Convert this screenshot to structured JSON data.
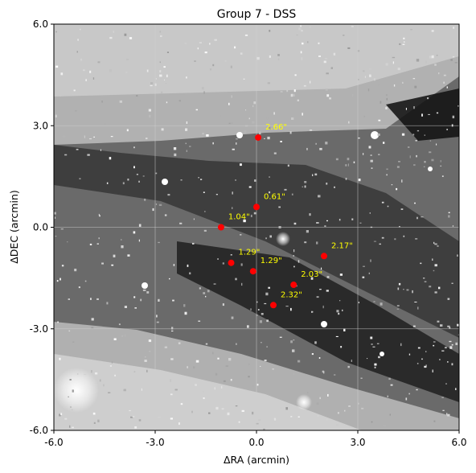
{
  "chart_data": {
    "type": "scatter",
    "title": "Group 7 - DSS",
    "xlabel": "ΔRA (arcmin)",
    "ylabel": "ΔDEC (arcmin)",
    "xlim": [
      -6.0,
      6.0
    ],
    "ylim": [
      -6.0,
      6.0
    ],
    "xticks": [
      "-6.0",
      "-3.0",
      "0.0",
      "3.0",
      "6.0"
    ],
    "yticks": [
      "-6.0",
      "-3.0",
      "0.0",
      "3.0",
      "6.0"
    ],
    "grid": true,
    "background": "DSS grayscale sky image",
    "marker_color": "#ff0000",
    "label_color": "#ffff00",
    "points": [
      {
        "x": 0.05,
        "y": 2.65,
        "label": "2.66\""
      },
      {
        "x": 0.0,
        "y": 0.6,
        "label": "0.61\""
      },
      {
        "x": -1.05,
        "y": 0.0,
        "label": "1.04\""
      },
      {
        "x": 2.0,
        "y": -0.85,
        "label": "2.17\""
      },
      {
        "x": -0.75,
        "y": -1.05,
        "label": "1.29\""
      },
      {
        "x": -0.1,
        "y": -1.3,
        "label": "1.29\""
      },
      {
        "x": 1.1,
        "y": -1.7,
        "label": "2.03\""
      },
      {
        "x": 0.5,
        "y": -2.3,
        "label": "2.32\""
      }
    ]
  }
}
